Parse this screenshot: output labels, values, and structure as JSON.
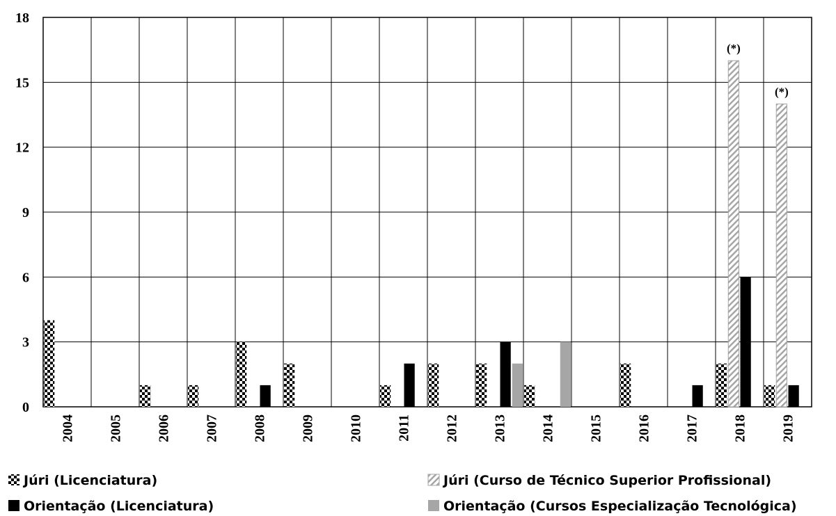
{
  "chart_data": {
    "type": "bar",
    "categories": [
      "2004",
      "2005",
      "2006",
      "2007",
      "2008",
      "2009",
      "2010",
      "2011",
      "2012",
      "2013",
      "2014",
      "2015",
      "2016",
      "2017",
      "2018",
      "2019"
    ],
    "series": [
      {
        "name": "Júri (Licenciatura)",
        "color": "#000000",
        "pattern": "checker",
        "values": [
          4,
          0,
          1,
          1,
          3,
          2,
          0,
          1,
          2,
          2,
          1,
          0,
          2,
          0,
          2,
          1
        ]
      },
      {
        "name": "Júri (Curso de Técnico Superior Profissional)",
        "color": "#a6a6a6",
        "pattern": "hatch",
        "values": [
          0,
          0,
          0,
          0,
          0,
          0,
          0,
          0,
          0,
          0,
          0,
          0,
          0,
          0,
          16,
          14
        ]
      },
      {
        "name": "Orientação (Licenciatura)",
        "color": "#000000",
        "values": [
          0,
          0,
          0,
          0,
          1,
          0,
          0,
          2,
          0,
          3,
          0,
          0,
          0,
          1,
          6,
          1
        ]
      },
      {
        "name": "Orientação (Cursos Especialização Tecnológica)",
        "color": "#a6a6a6",
        "values": [
          0,
          0,
          0,
          0,
          0,
          0,
          0,
          0,
          0,
          2,
          3,
          0,
          0,
          0,
          0,
          0
        ]
      }
    ],
    "annotations": [
      {
        "text": "(*)",
        "category": "2018",
        "series": 1
      },
      {
        "text": "(*)",
        "category": "2019",
        "series": 1
      }
    ],
    "ylim": [
      0,
      18
    ],
    "yticks": [
      0,
      3,
      6,
      9,
      12,
      15,
      18
    ],
    "grid": true
  }
}
